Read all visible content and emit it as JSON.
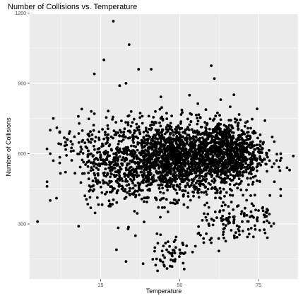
{
  "chart_data": {
    "type": "scatter",
    "title": "Number of Collisions vs. Temperature",
    "xlabel": "Temperature",
    "ylabel": "Number of Collisions",
    "xlim": [
      2.5,
      87.5
    ],
    "ylim": [
      65,
      1195
    ],
    "x_ticks": [
      25,
      50,
      75
    ],
    "y_ticks": [
      300,
      600,
      900,
      1200
    ],
    "x_minor_ticks": [
      12.5,
      37.5,
      62.5,
      87.5
    ],
    "y_minor_ticks": [
      150,
      450,
      750,
      1050
    ],
    "grid": true,
    "legend": "none",
    "colors": {
      "panel": "#ebebeb",
      "grid": "#ffffff",
      "point": "#000000"
    },
    "series": [
      {
        "points_notable": [
          [
            29,
            1165
          ],
          [
            34,
            1065
          ],
          [
            26,
            1000
          ],
          [
            37,
            960
          ],
          [
            41,
            960
          ],
          [
            23,
            940
          ],
          [
            60,
            975
          ],
          [
            61,
            920
          ],
          [
            19,
            790
          ],
          [
            22,
            780
          ],
          [
            23,
            770
          ],
          [
            10,
            750
          ],
          [
            9,
            700
          ],
          [
            12,
            690
          ],
          [
            8,
            620
          ],
          [
            9,
            600
          ],
          [
            10,
            570
          ],
          [
            12,
            560
          ],
          [
            5,
            310
          ],
          [
            8,
            480
          ],
          [
            8,
            460
          ],
          [
            9,
            400
          ],
          [
            11,
            410
          ],
          [
            18,
            290
          ],
          [
            20,
            420
          ],
          [
            30,
            190
          ],
          [
            33,
            140
          ],
          [
            36,
            250
          ],
          [
            43,
            100
          ],
          [
            46,
            110
          ],
          [
            47,
            120
          ],
          [
            50,
            190
          ],
          [
            55,
            205
          ],
          [
            60,
            220
          ],
          [
            64,
            240
          ],
          [
            70,
            270
          ],
          [
            77,
            330
          ],
          [
            79,
            290
          ],
          [
            84,
            540
          ],
          [
            86,
            590
          ],
          [
            82,
            600
          ],
          [
            80,
            480
          ],
          [
            82,
            420
          ],
          [
            63,
            830
          ],
          [
            66,
            800
          ],
          [
            31,
            890
          ],
          [
            33,
            900
          ]
        ],
        "clusters": [
          {
            "center": [
              48,
              580
            ],
            "spread": [
              9,
              80
            ],
            "count": 1500
          },
          {
            "center": [
              65,
              600
            ],
            "spread": [
              6,
              70
            ],
            "count": 850
          },
          {
            "center": [
              30,
              560
            ],
            "spread": [
              6,
              90
            ],
            "count": 380
          },
          {
            "center": [
              47,
              170
            ],
            "spread": [
              3,
              45
            ],
            "count": 55
          },
          {
            "center": [
              66,
              300
            ],
            "spread": [
              5,
              45
            ],
            "count": 90
          },
          {
            "center": [
              75,
              320
            ],
            "spread": [
              3,
              40
            ],
            "count": 35
          },
          {
            "center": [
              18,
              620
            ],
            "spread": [
              4,
              70
            ],
            "count": 40
          }
        ]
      }
    ]
  }
}
